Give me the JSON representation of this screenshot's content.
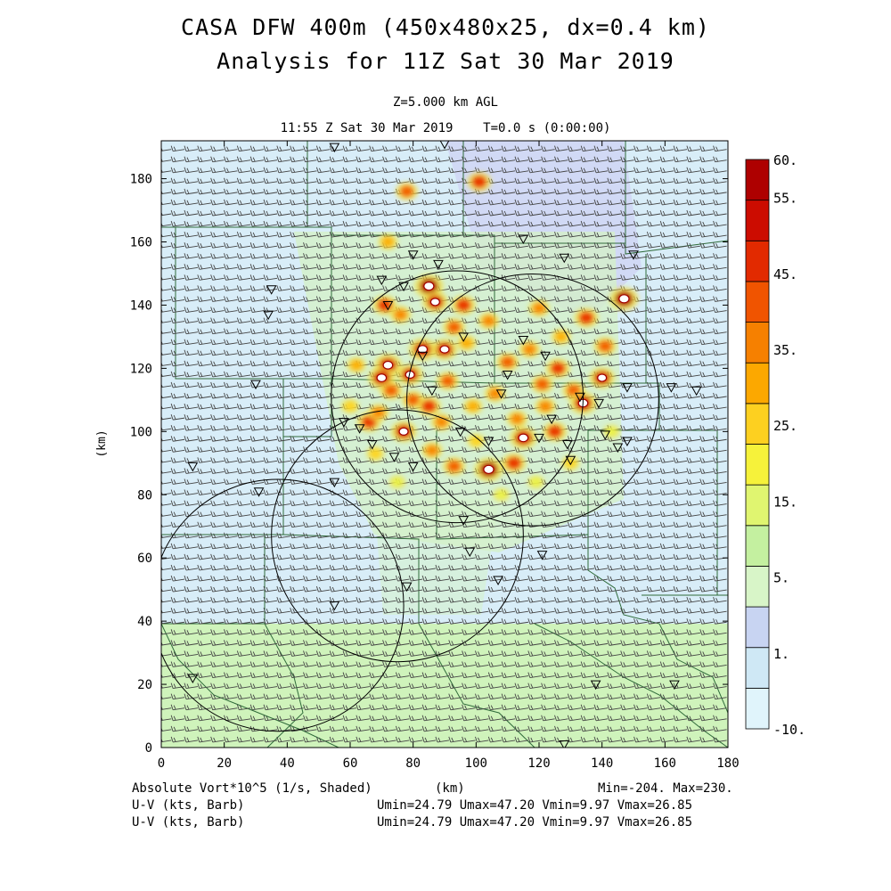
{
  "title_line1": "CASA DFW 400m (450x480x25, dx=0.4 km)",
  "title_line2": "Analysis for 11Z Sat 30 Mar 2019",
  "subtitle_level": "Z=5.000 km AGL",
  "subtitle_time": "11:55 Z Sat 30 Mar 2019    T=0.0 s (0:00:00)",
  "footer": {
    "field_label": "Absolute Vort*10^5 (1/s, Shaded)",
    "xunit_label": "(km)",
    "minmax": "Min=-204. Max=230.",
    "barb_label_1": "U-V (kts, Barb)",
    "barb_stats_1": "Umin=24.79 Umax=47.20 Vmin=9.97 Vmax=26.85",
    "barb_label_2": "U-V (kts, Barb)",
    "barb_stats_2": "Umin=24.79 Umax=47.20 Vmin=9.97 Vmax=26.85"
  },
  "colors": {
    "background_field": "#d6ecf7",
    "light_green": "#c9f2b4",
    "county_lines": "#2f6b3a",
    "radar_rings": "#000000"
  },
  "chart_data": {
    "type": "heatmap",
    "xlabel": "",
    "ylabel": "(km)",
    "xlim": [
      0,
      180
    ],
    "ylim": [
      0,
      192
    ],
    "xticks": [
      0,
      20,
      40,
      60,
      80,
      100,
      120,
      140,
      160,
      180
    ],
    "yticks": [
      0,
      20,
      40,
      60,
      80,
      100,
      120,
      140,
      160,
      180
    ],
    "colorbar": {
      "labels": [
        {
          "level": 60,
          "text": "60."
        },
        {
          "level": 55,
          "text": "55."
        },
        {
          "level": 45,
          "text": "45."
        },
        {
          "level": 35,
          "text": "35."
        },
        {
          "level": 25,
          "text": "25."
        },
        {
          "level": 15,
          "text": "15."
        },
        {
          "level": 5,
          "text": "5."
        },
        {
          "level": 1,
          "text": "1."
        },
        {
          "level": -10,
          "text": "-10."
        }
      ],
      "colors": [
        "#e0f4fb",
        "#cfe8f5",
        "#c8d4f2",
        "#d8f5c8",
        "#c4f0a0",
        "#e0f570",
        "#f6f23a",
        "#fdd020",
        "#fca800",
        "#f68000",
        "#f05400",
        "#e22a00",
        "#cc0c00",
        "#ae0000"
      ]
    },
    "radar_rings": [
      {
        "cx": 94,
        "cy": 111,
        "r": 40
      },
      {
        "cx": 118,
        "cy": 110,
        "r": 40
      },
      {
        "cx": 75,
        "cy": 67,
        "r": 40
      },
      {
        "cx": 37,
        "cy": 45,
        "r": 40
      }
    ],
    "vorticity_cells": [
      {
        "x": 72,
        "y": 121,
        "v": 50
      },
      {
        "x": 85,
        "y": 146,
        "v": 55
      },
      {
        "x": 87,
        "y": 141,
        "v": 45
      },
      {
        "x": 71,
        "y": 140,
        "v": 40
      },
      {
        "x": 76,
        "y": 137,
        "v": 30
      },
      {
        "x": 70,
        "y": 117,
        "v": 50
      },
      {
        "x": 73,
        "y": 113,
        "v": 35
      },
      {
        "x": 79,
        "y": 118,
        "v": 45
      },
      {
        "x": 83,
        "y": 126,
        "v": 50
      },
      {
        "x": 90,
        "y": 126,
        "v": 45
      },
      {
        "x": 96,
        "y": 140,
        "v": 40
      },
      {
        "x": 93,
        "y": 133,
        "v": 35
      },
      {
        "x": 104,
        "y": 135,
        "v": 30
      },
      {
        "x": 80,
        "y": 110,
        "v": 35
      },
      {
        "x": 66,
        "y": 103,
        "v": 40
      },
      {
        "x": 69,
        "y": 106,
        "v": 30
      },
      {
        "x": 77,
        "y": 100,
        "v": 45
      },
      {
        "x": 85,
        "y": 108,
        "v": 40
      },
      {
        "x": 89,
        "y": 103,
        "v": 30
      },
      {
        "x": 91,
        "y": 116,
        "v": 35
      },
      {
        "x": 99,
        "y": 108,
        "v": 25
      },
      {
        "x": 106,
        "y": 112,
        "v": 30
      },
      {
        "x": 110,
        "y": 122,
        "v": 35
      },
      {
        "x": 113,
        "y": 104,
        "v": 30
      },
      {
        "x": 115,
        "y": 98,
        "v": 50
      },
      {
        "x": 104,
        "y": 88,
        "v": 55
      },
      {
        "x": 112,
        "y": 90,
        "v": 40
      },
      {
        "x": 93,
        "y": 89,
        "v": 35
      },
      {
        "x": 121,
        "y": 115,
        "v": 35
      },
      {
        "x": 126,
        "y": 120,
        "v": 40
      },
      {
        "x": 131,
        "y": 113,
        "v": 35
      },
      {
        "x": 134,
        "y": 109,
        "v": 50
      },
      {
        "x": 122,
        "y": 108,
        "v": 30
      },
      {
        "x": 125,
        "y": 100,
        "v": 40
      },
      {
        "x": 135,
        "y": 136,
        "v": 40
      },
      {
        "x": 140,
        "y": 117,
        "v": 45
      },
      {
        "x": 141,
        "y": 127,
        "v": 35
      },
      {
        "x": 147,
        "y": 142,
        "v": 55
      },
      {
        "x": 127,
        "y": 130,
        "v": 25
      },
      {
        "x": 120,
        "y": 139,
        "v": 30
      },
      {
        "x": 101,
        "y": 179,
        "v": 40
      },
      {
        "x": 78,
        "y": 176,
        "v": 35
      },
      {
        "x": 72,
        "y": 160,
        "v": 25
      },
      {
        "x": 97,
        "y": 128,
        "v": 25
      },
      {
        "x": 117,
        "y": 126,
        "v": 30
      },
      {
        "x": 108,
        "y": 80,
        "v": 15
      },
      {
        "x": 86,
        "y": 94,
        "v": 30
      },
      {
        "x": 60,
        "y": 108,
        "v": 20
      },
      {
        "x": 62,
        "y": 121,
        "v": 25
      },
      {
        "x": 100,
        "y": 97,
        "v": 20
      },
      {
        "x": 130,
        "y": 90,
        "v": 20
      },
      {
        "x": 143,
        "y": 100,
        "v": 15
      },
      {
        "x": 68,
        "y": 93,
        "v": 20
      },
      {
        "x": 75,
        "y": 84,
        "v": 15
      },
      {
        "x": 119,
        "y": 84,
        "v": 15
      }
    ]
  }
}
